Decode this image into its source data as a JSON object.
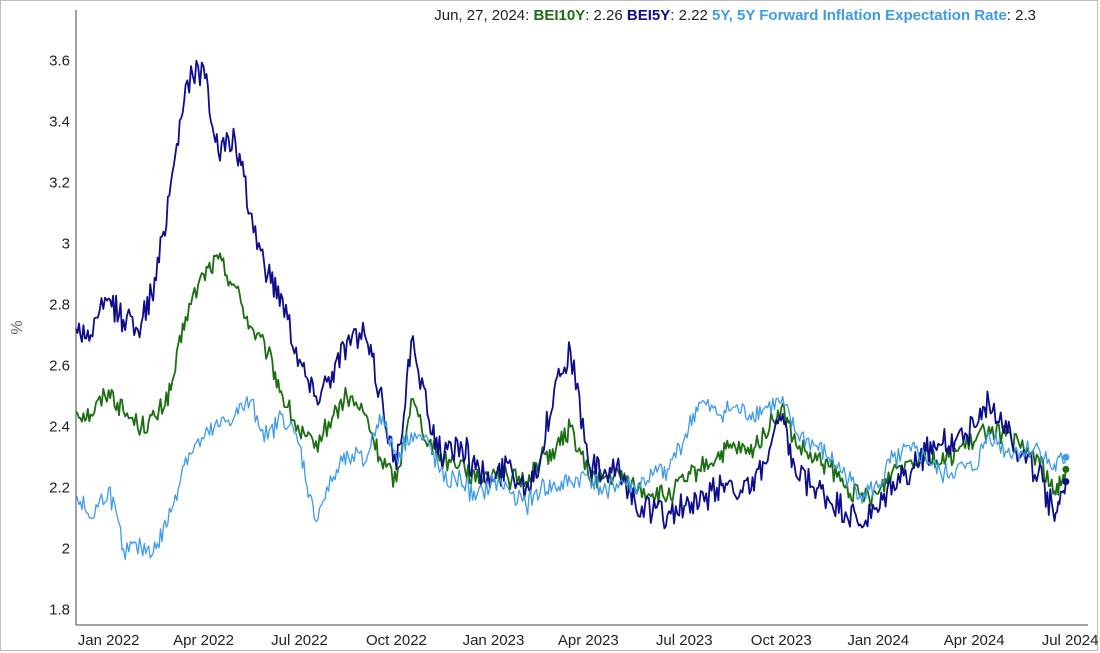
{
  "legend": {
    "date": "Jun, 27, 2024",
    "items": [
      {
        "name": "BEI10Y",
        "value": "2.26",
        "color": "#1b6e12"
      },
      {
        "name": "BEI5Y",
        "value": "2.22",
        "color": "#0e0e8c"
      },
      {
        "name": "5Y, 5Y Forward Inflation Expectation Rate",
        "value": "2.3",
        "color": "#3d9be9"
      }
    ]
  },
  "chart_data": {
    "type": "line",
    "ylabel": "%",
    "ylim": [
      1.75,
      3.7
    ],
    "yticks": [
      1.8,
      2,
      2.2,
      2.4,
      2.6,
      2.8,
      3,
      3.2,
      3.4,
      3.6
    ],
    "xlim": [
      "2021-12-01",
      "2024-07-18"
    ],
    "xticks": [
      {
        "date": "2022-01-01",
        "label": "Jan 2022"
      },
      {
        "date": "2022-04-01",
        "label": "Apr 2022"
      },
      {
        "date": "2022-07-01",
        "label": "Jul 2022"
      },
      {
        "date": "2022-10-01",
        "label": "Oct 2022"
      },
      {
        "date": "2023-01-01",
        "label": "Jan 2023"
      },
      {
        "date": "2023-04-01",
        "label": "Apr 2023"
      },
      {
        "date": "2023-07-01",
        "label": "Jul 2023"
      },
      {
        "date": "2023-10-01",
        "label": "Oct 2023"
      },
      {
        "date": "2024-01-01",
        "label": "Jan 2024"
      },
      {
        "date": "2024-04-01",
        "label": "Apr 2024"
      },
      {
        "date": "2024-07-01",
        "label": "Jul 2024"
      }
    ],
    "grid": false,
    "legend_position": "top",
    "x": [
      "2021-12-01",
      "2021-12-15",
      "2022-01-01",
      "2022-01-15",
      "2022-02-01",
      "2022-02-15",
      "2022-03-01",
      "2022-03-15",
      "2022-04-01",
      "2022-04-15",
      "2022-05-01",
      "2022-05-15",
      "2022-06-01",
      "2022-06-15",
      "2022-07-01",
      "2022-07-15",
      "2022-08-01",
      "2022-08-15",
      "2022-09-01",
      "2022-09-15",
      "2022-10-01",
      "2022-10-15",
      "2022-11-01",
      "2022-11-15",
      "2022-12-01",
      "2022-12-15",
      "2023-01-01",
      "2023-01-15",
      "2023-02-01",
      "2023-02-15",
      "2023-03-01",
      "2023-03-15",
      "2023-04-01",
      "2023-04-15",
      "2023-05-01",
      "2023-05-15",
      "2023-06-01",
      "2023-06-15",
      "2023-07-01",
      "2023-07-15",
      "2023-08-01",
      "2023-08-15",
      "2023-09-01",
      "2023-09-15",
      "2023-10-01",
      "2023-10-15",
      "2023-11-01",
      "2023-11-15",
      "2023-12-01",
      "2023-12-15",
      "2024-01-01",
      "2024-01-15",
      "2024-02-01",
      "2024-02-15",
      "2024-03-01",
      "2024-03-15",
      "2024-04-01",
      "2024-04-15",
      "2024-05-01",
      "2024-05-15",
      "2024-06-01",
      "2024-06-15",
      "2024-06-27"
    ],
    "series": [
      {
        "name": "BEI10Y",
        "color": "#1b6e12",
        "values": [
          2.45,
          2.44,
          2.52,
          2.45,
          2.4,
          2.43,
          2.52,
          2.76,
          2.9,
          2.95,
          2.86,
          2.73,
          2.64,
          2.5,
          2.38,
          2.33,
          2.43,
          2.5,
          2.44,
          2.3,
          2.22,
          2.49,
          2.35,
          2.29,
          2.29,
          2.22,
          2.26,
          2.23,
          2.22,
          2.3,
          2.32,
          2.4,
          2.24,
          2.23,
          2.24,
          2.2,
          2.18,
          2.17,
          2.22,
          2.26,
          2.3,
          2.33,
          2.31,
          2.38,
          2.46,
          2.34,
          2.29,
          2.27,
          2.2,
          2.17,
          2.18,
          2.26,
          2.29,
          2.32,
          2.28,
          2.32,
          2.35,
          2.4,
          2.37,
          2.33,
          2.3,
          2.18,
          2.26
        ]
      },
      {
        "name": "BEI5Y",
        "color": "#0e0e8c",
        "values": [
          2.72,
          2.7,
          2.82,
          2.75,
          2.74,
          2.88,
          3.2,
          3.52,
          3.58,
          3.3,
          3.34,
          3.1,
          2.9,
          2.82,
          2.62,
          2.5,
          2.58,
          2.68,
          2.7,
          2.52,
          2.26,
          2.68,
          2.42,
          2.3,
          2.35,
          2.26,
          2.22,
          2.28,
          2.2,
          2.3,
          2.55,
          2.65,
          2.28,
          2.24,
          2.25,
          2.16,
          2.12,
          2.11,
          2.14,
          2.14,
          2.2,
          2.22,
          2.18,
          2.28,
          2.42,
          2.24,
          2.2,
          2.16,
          2.12,
          2.08,
          2.12,
          2.22,
          2.25,
          2.32,
          2.34,
          2.36,
          2.4,
          2.48,
          2.42,
          2.3,
          2.25,
          2.12,
          2.22
        ]
      },
      {
        "name": "5Y, 5Y Forward Inflation Expectation Rate",
        "color": "#3d9be9",
        "values": [
          2.18,
          2.1,
          2.2,
          2.0,
          2.0,
          2.0,
          2.12,
          2.3,
          2.36,
          2.4,
          2.44,
          2.48,
          2.36,
          2.44,
          2.34,
          2.1,
          2.22,
          2.32,
          2.28,
          2.44,
          2.3,
          2.38,
          2.34,
          2.22,
          2.23,
          2.16,
          2.22,
          2.2,
          2.14,
          2.2,
          2.2,
          2.22,
          2.24,
          2.19,
          2.22,
          2.2,
          2.24,
          2.26,
          2.36,
          2.48,
          2.44,
          2.46,
          2.44,
          2.46,
          2.48,
          2.38,
          2.34,
          2.3,
          2.24,
          2.18,
          2.2,
          2.3,
          2.32,
          2.3,
          2.24,
          2.26,
          2.26,
          2.38,
          2.32,
          2.32,
          2.33,
          2.26,
          2.3
        ]
      }
    ]
  }
}
